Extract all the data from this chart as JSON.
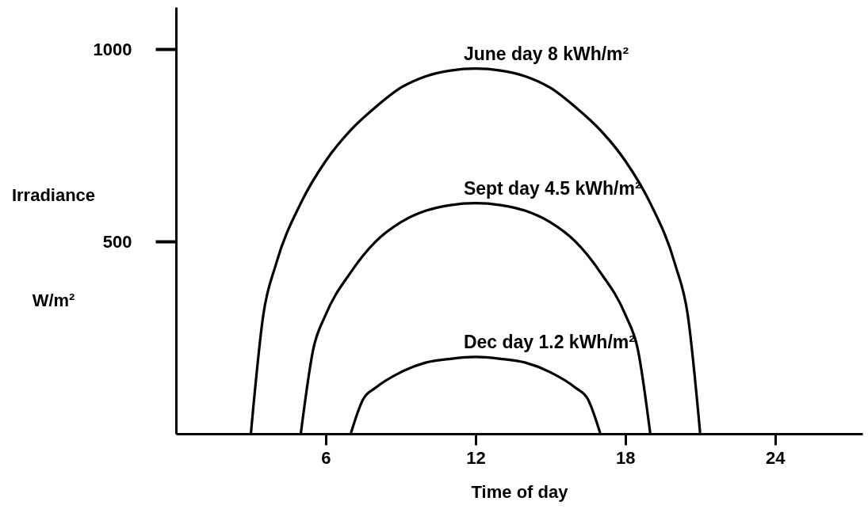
{
  "chart_data": {
    "type": "line",
    "xlabel": "Time of day",
    "ylabel": "Irradiance W/m²",
    "xlim": [
      0,
      27.5
    ],
    "ylim": [
      0,
      1110
    ],
    "xticks": [
      6,
      12,
      18,
      24
    ],
    "yticks": [
      500,
      1000
    ],
    "grid": false,
    "marker": "none",
    "line_style": "solid",
    "series": [
      {
        "name": "June day 8 kWh/m²",
        "color": "#000000",
        "x": [
          3,
          3.5,
          4,
          5,
          6,
          7,
          8,
          9,
          10,
          11,
          12,
          13,
          14,
          15,
          16,
          17,
          18,
          19,
          20,
          20.5,
          21
        ],
        "values": [
          0,
          310,
          440,
          600,
          710,
          790,
          850,
          900,
          930,
          945,
          950,
          945,
          930,
          900,
          850,
          790,
          710,
          600,
          440,
          310,
          0
        ]
      },
      {
        "name": "Sept day 4.5 kWh/m²",
        "color": "#000000",
        "x": [
          5,
          5.5,
          6,
          7,
          8,
          9,
          10,
          11,
          12,
          13,
          14,
          15,
          16,
          17,
          18,
          18.5,
          19
        ],
        "values": [
          0,
          220,
          310,
          420,
          500,
          550,
          580,
          595,
          600,
          595,
          580,
          550,
          500,
          420,
          310,
          220,
          0
        ]
      },
      {
        "name": "Dec day 1.2 kWh/m²",
        "color": "#000000",
        "x": [
          7,
          7.5,
          8,
          9,
          10,
          11,
          12,
          13,
          14,
          15,
          16,
          16.5,
          17
        ],
        "values": [
          0,
          90,
          120,
          160,
          185,
          195,
          200,
          195,
          185,
          160,
          120,
          90,
          0
        ]
      }
    ]
  }
}
